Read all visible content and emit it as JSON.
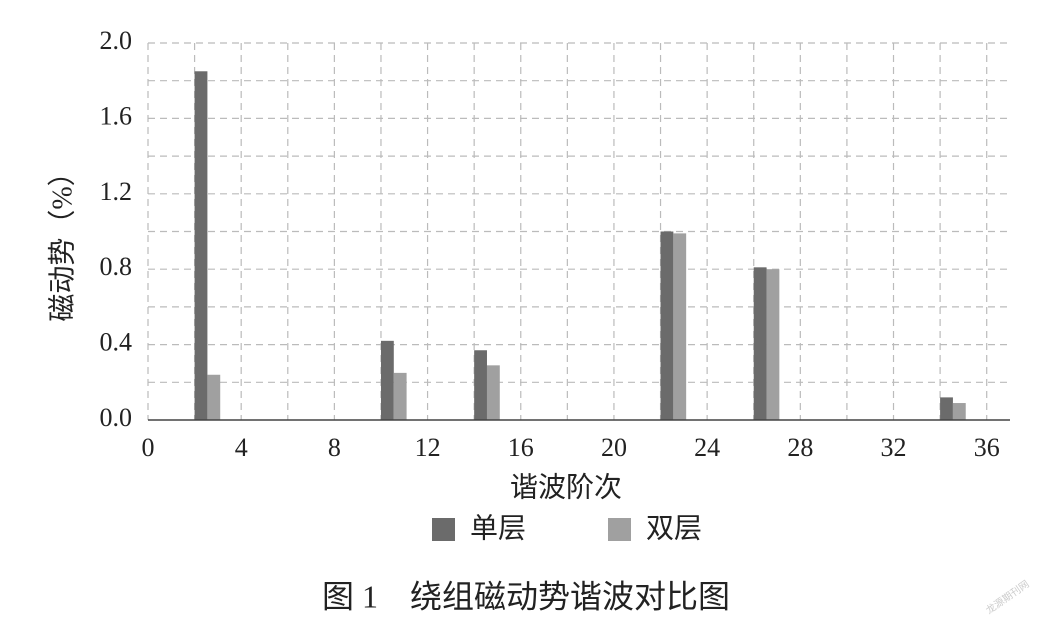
{
  "chart_data": {
    "type": "bar",
    "title": "图 1　绕组磁动势谐波对比图",
    "xlabel": "谐波阶次",
    "ylabel": "磁动势（%）",
    "x": [
      2,
      10,
      14,
      22,
      26,
      34
    ],
    "series": [
      {
        "name": "单层",
        "color": "#6b6b6b",
        "values": [
          1.85,
          0.42,
          0.37,
          1.0,
          0.81,
          0.12
        ]
      },
      {
        "name": "双层",
        "color": "#a0a0a0",
        "values": [
          0.24,
          0.25,
          0.29,
          0.99,
          0.8,
          0.09
        ]
      }
    ],
    "xlim": [
      0,
      37
    ],
    "xticks": [
      0,
      4,
      8,
      12,
      16,
      20,
      24,
      28,
      32,
      36
    ],
    "ylim": [
      0,
      2.0
    ],
    "yticks": [
      {
        "value": 0,
        "label": "0.0"
      },
      {
        "value": 0.4,
        "label": "0.4"
      },
      {
        "value": 0.8,
        "label": "0.8"
      },
      {
        "value": 1.2,
        "label": "1.2"
      },
      {
        "value": 1.6,
        "label": "1.6"
      },
      {
        "value": 2.0,
        "label": "2.0"
      }
    ],
    "xgrid": [
      0,
      2,
      4,
      6,
      8,
      10,
      12,
      14,
      16,
      18,
      20,
      22,
      24,
      26,
      28,
      30,
      32,
      34,
      36
    ],
    "ygrid": [
      0.2,
      0.4,
      0.6,
      0.8,
      1.0,
      1.2,
      1.4,
      1.6,
      1.8,
      2.0
    ],
    "grid": true,
    "watermark": "龙源期刊网"
  }
}
